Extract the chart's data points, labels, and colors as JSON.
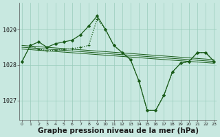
{
  "background_color": "#c8e8e0",
  "grid_color": "#99ccbb",
  "line_color": "#1a5c1a",
  "xlabel": "Graphe pression niveau de la mer (hPa)",
  "xlabel_fontsize": 7.5,
  "ylim": [
    1026.45,
    1029.75
  ],
  "xlim": [
    -0.3,
    23.3
  ],
  "yticks": [
    1027,
    1028,
    1029
  ],
  "xticks": [
    0,
    1,
    2,
    3,
    4,
    5,
    6,
    7,
    8,
    9,
    10,
    11,
    12,
    13,
    14,
    15,
    16,
    17,
    18,
    19,
    20,
    21,
    22,
    23
  ],
  "series": [
    {
      "x": [
        0,
        23
      ],
      "y": [
        1028.55,
        1028.15
      ],
      "marker": null,
      "linewidth": 0.7
    },
    {
      "x": [
        0,
        23
      ],
      "y": [
        1028.5,
        1028.1
      ],
      "marker": null,
      "linewidth": 0.7
    },
    {
      "x": [
        0,
        23
      ],
      "y": [
        1028.45,
        1028.05
      ],
      "marker": null,
      "linewidth": 0.7
    },
    {
      "x": [
        0,
        1,
        2,
        3,
        4,
        5,
        6,
        7,
        8,
        9,
        10,
        11,
        12,
        13,
        14,
        15,
        16,
        17,
        18,
        19,
        20,
        21,
        22,
        23
      ],
      "y": [
        1028.1,
        1028.55,
        1028.45,
        1028.4,
        1028.42,
        1028.44,
        1028.46,
        1028.5,
        1028.55,
        1029.3,
        1029.0,
        1028.55,
        1028.35,
        1028.15,
        1027.55,
        1026.72,
        1026.72,
        1027.15,
        1027.8,
        1028.05,
        1028.1,
        1028.35,
        1028.35,
        1028.1
      ],
      "marker": "+",
      "markersize": 3.5,
      "linewidth": 0.9,
      "linestyle": "dotted"
    },
    {
      "x": [
        0,
        1,
        2,
        3,
        4,
        5,
        6,
        7,
        8,
        9,
        10,
        11,
        12,
        13,
        14,
        15,
        16,
        17,
        18,
        19,
        20,
        21,
        22,
        23
      ],
      "y": [
        1028.1,
        1028.55,
        1028.65,
        1028.5,
        1028.6,
        1028.65,
        1028.7,
        1028.85,
        1029.1,
        1029.38,
        1029.0,
        1028.55,
        1028.35,
        1028.15,
        1027.55,
        1026.72,
        1026.72,
        1027.15,
        1027.8,
        1028.05,
        1028.1,
        1028.35,
        1028.35,
        1028.1
      ],
      "marker": "D",
      "markersize": 2.0,
      "linewidth": 0.9,
      "linestyle": "solid"
    }
  ]
}
